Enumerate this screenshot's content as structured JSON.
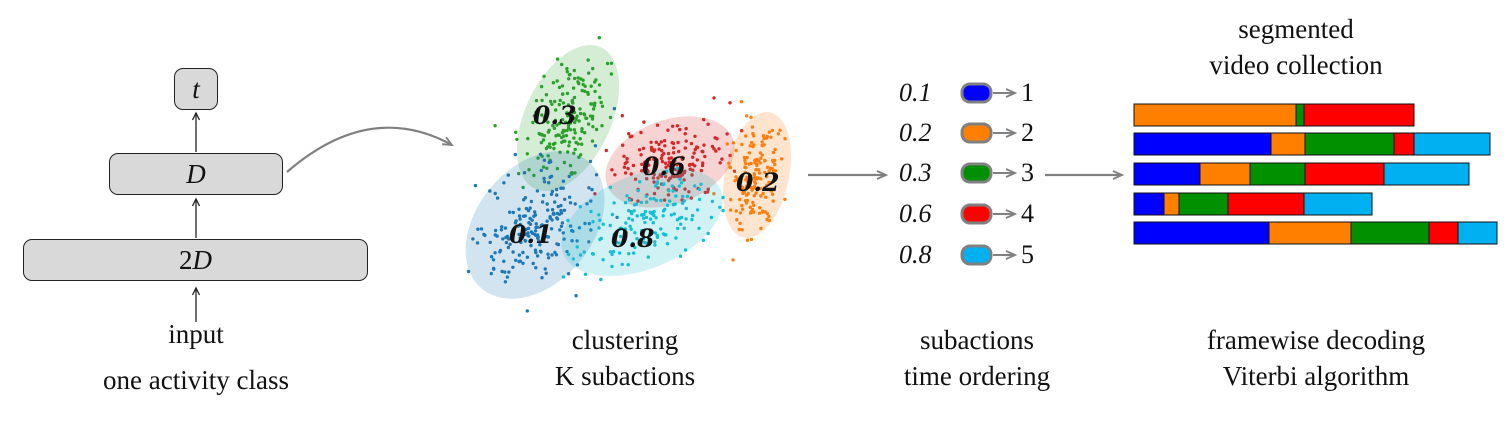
{
  "network": {
    "output_label": "t",
    "hidden_label": "D",
    "first_label_num": "2",
    "first_label_var": "D",
    "input_label": "input",
    "caption": "one activity class"
  },
  "clustering": {
    "caption_line1": "clustering",
    "caption_line2": "K subactions",
    "clusters": [
      {
        "label": "0.3",
        "color": "#2ca02c"
      },
      {
        "label": "0.6",
        "color": "#d62728"
      },
      {
        "label": "0.2",
        "color": "#ff7f0e"
      },
      {
        "label": "0.1",
        "color": "#1f77b4"
      },
      {
        "label": "0.8",
        "color": "#17becf"
      }
    ]
  },
  "ordering": {
    "caption_line1": "subactions",
    "caption_line2": "time ordering",
    "items": [
      {
        "value": "0.1",
        "color": "#0000ff",
        "index": "1"
      },
      {
        "value": "0.2",
        "color": "#ff8000",
        "index": "2"
      },
      {
        "value": "0.3",
        "color": "#009000",
        "index": "3"
      },
      {
        "value": "0.6",
        "color": "#ff0000",
        "index": "4"
      },
      {
        "value": "0.8",
        "color": "#00b0f0",
        "index": "5"
      }
    ]
  },
  "segmentation": {
    "title_line1": "segmented",
    "title_line2": "video collection",
    "caption_line1": "framewise decoding",
    "caption_line2": "Viterbi algorithm",
    "sequences": [
      [
        {
          "sub": 2,
          "len": 162
        },
        {
          "sub": 3,
          "len": 8
        },
        {
          "sub": 4,
          "len": 110
        }
      ],
      [
        {
          "sub": 1,
          "len": 137
        },
        {
          "sub": 2,
          "len": 34
        },
        {
          "sub": 3,
          "len": 89
        },
        {
          "sub": 4,
          "len": 20
        },
        {
          "sub": 5,
          "len": 76
        }
      ],
      [
        {
          "sub": 1,
          "len": 66
        },
        {
          "sub": 2,
          "len": 50
        },
        {
          "sub": 3,
          "len": 55
        },
        {
          "sub": 4,
          "len": 79
        },
        {
          "sub": 5,
          "len": 85
        }
      ],
      [
        {
          "sub": 1,
          "len": 30
        },
        {
          "sub": 2,
          "len": 15
        },
        {
          "sub": 3,
          "len": 49
        },
        {
          "sub": 4,
          "len": 76
        },
        {
          "sub": 5,
          "len": 68
        }
      ],
      [
        {
          "sub": 1,
          "len": 135
        },
        {
          "sub": 2,
          "len": 82
        },
        {
          "sub": 3,
          "len": 78
        },
        {
          "sub": 4,
          "len": 29
        },
        {
          "sub": 5,
          "len": 39
        }
      ]
    ]
  }
}
